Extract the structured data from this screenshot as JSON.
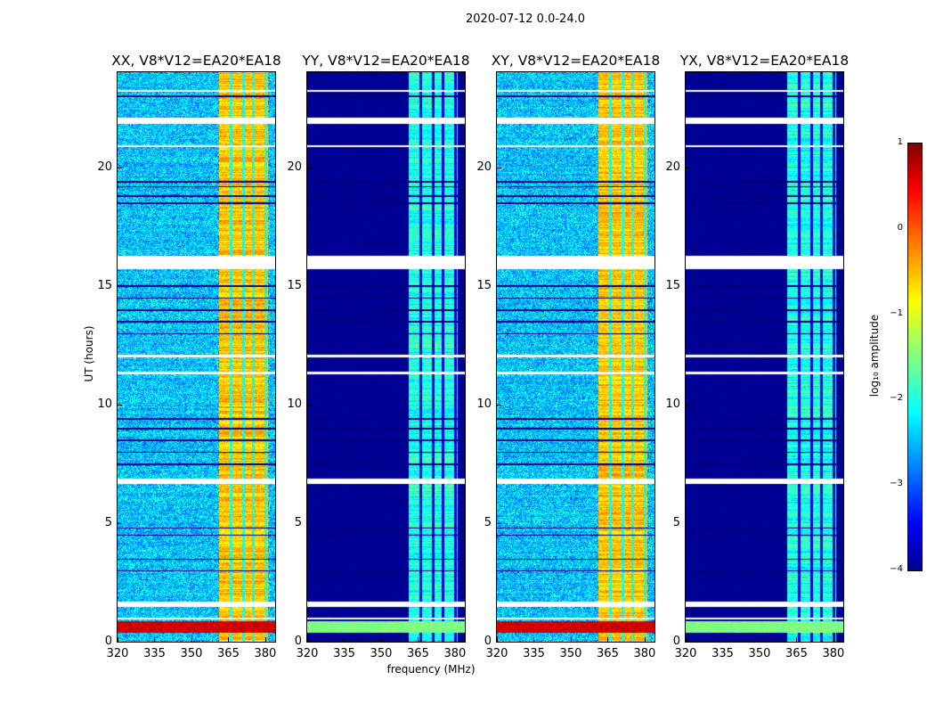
{
  "title": "2020-07-12 0.0-24.0",
  "chart_data": {
    "type": "heatmap",
    "title": "2020-07-12 0.0-24.0",
    "xlabel": "frequency (MHz)",
    "ylabel": "UT (hours)",
    "xlim": [
      320,
      384
    ],
    "ylim": [
      0,
      24
    ],
    "xticks": [
      "320",
      "335",
      "350",
      "365",
      "380"
    ],
    "yticks": [
      "0",
      "5",
      "10",
      "15",
      "20"
    ],
    "colorbar": {
      "label": "log₁₀ amplitude",
      "range": [
        -4,
        1
      ],
      "ticks": [
        "1",
        "0",
        "−1",
        "−2",
        "−3",
        "−4"
      ],
      "colormap": "jet"
    },
    "band_mhz": [
      361,
      381
    ],
    "band_gaps_mhz": [
      366,
      371,
      375,
      380
    ],
    "flagged_hours": [
      [
        0.95,
        1.05
      ],
      [
        1.5,
        1.7
      ],
      [
        6.65,
        6.9
      ],
      [
        11.3,
        11.4
      ],
      [
        12.0,
        12.1
      ],
      [
        15.7,
        16.3
      ],
      [
        20.85,
        20.95
      ],
      [
        21.85,
        22.1
      ],
      [
        23.2,
        23.25
      ]
    ],
    "dark_hours": [
      3.0,
      3.5,
      4.5,
      4.8,
      7.5,
      8.0,
      8.5,
      9.0,
      9.4,
      13.0,
      13.5,
      14.0,
      14.5,
      15.0,
      18.5,
      18.8,
      19.2,
      19.4,
      23.0
    ],
    "panels": [
      {
        "title": "XX, V8*V12=EA20*EA18",
        "background_level": -2.4,
        "band_level": -0.6,
        "low_rfi_level": 0.6
      },
      {
        "title": "YY, V8*V12=EA20*EA18",
        "background_level": -3.9,
        "band_level": -2.0,
        "low_rfi_level": -1.5
      },
      {
        "title": "XY, V8*V12=EA20*EA18",
        "background_level": -2.4,
        "band_level": -0.6,
        "low_rfi_level": 0.6
      },
      {
        "title": "YX, V8*V12=EA20*EA18",
        "background_level": -3.9,
        "band_level": -2.0,
        "low_rfi_level": -1.5
      }
    ]
  }
}
